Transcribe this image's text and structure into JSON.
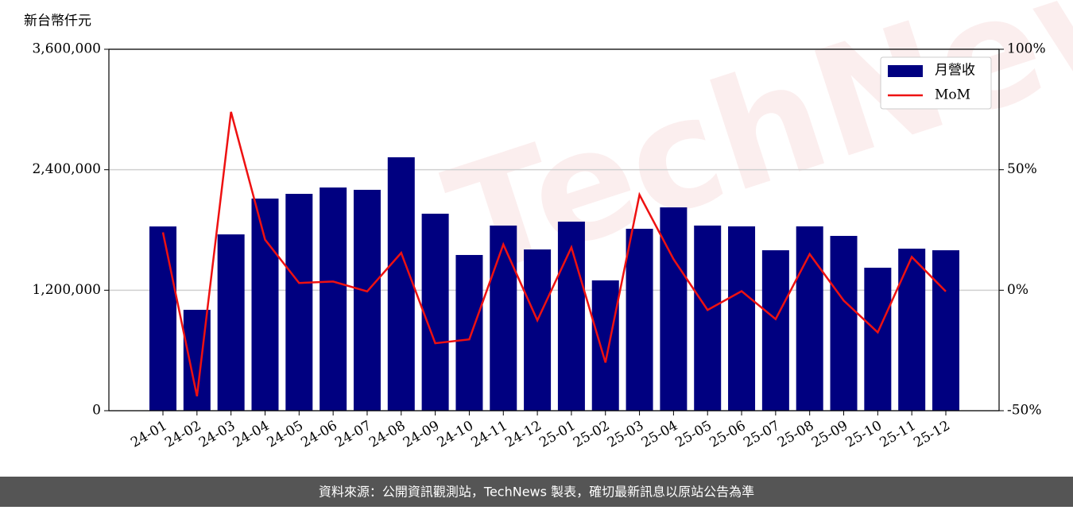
{
  "chart_data": {
    "type": "bar-line",
    "unit_label": "新台幣仟元",
    "watermark": "TechNews",
    "source": "資料來源：公開資訊觀測站，TechNews 製表，確切最新訊息以原站公告為準",
    "categories": [
      "24-01",
      "24-02",
      "24-03",
      "24-04",
      "24-05",
      "24-06",
      "24-07",
      "24-08",
      "24-09",
      "24-10",
      "24-11",
      "24-12",
      "25-01",
      "25-02",
      "25-03",
      "25-04",
      "25-05",
      "25-06",
      "25-07",
      "25-08",
      "25-09",
      "25-10",
      "25-11",
      "25-12"
    ],
    "series": [
      {
        "name": "月營收",
        "type": "bar",
        "color": "#000080",
        "values": [
          1835000,
          1005000,
          1756000,
          2113000,
          2160000,
          2223000,
          2200000,
          2524000,
          1962000,
          1551000,
          1844000,
          1606000,
          1883000,
          1298000,
          1812000,
          2025000,
          1844000,
          1836000,
          1598000,
          1836000,
          1741000,
          1424000,
          1614000,
          1598000
        ]
      },
      {
        "name": "MoM",
        "type": "line",
        "axis": "y2",
        "color": "#ee1111",
        "values": [
          24,
          -44,
          74,
          21,
          3,
          3.6,
          -0.5,
          15.5,
          -22,
          -20.4,
          19,
          -12.5,
          17.8,
          -30,
          39.6,
          12.9,
          -8.2,
          -0.4,
          -12,
          15,
          -4.3,
          -17.5,
          13.8,
          -0.5
        ]
      }
    ],
    "ylim": [
      0,
      3600000
    ],
    "yticks": [
      0,
      {
        "value": 1200000,
        "label": "1,200,000"
      },
      {
        "value": 2400000,
        "label": "2,400,000"
      },
      {
        "value": 3600000,
        "label": "3,600,000"
      }
    ],
    "y2lim": [
      -50,
      100
    ],
    "y2ticks": [
      {
        "value": -50,
        "label": "-50%"
      },
      {
        "value": 0,
        "label": "0%"
      },
      {
        "value": 50,
        "label": "50%"
      },
      {
        "value": 100,
        "label": "100%"
      }
    ],
    "grid": true,
    "legend": "upper right"
  }
}
